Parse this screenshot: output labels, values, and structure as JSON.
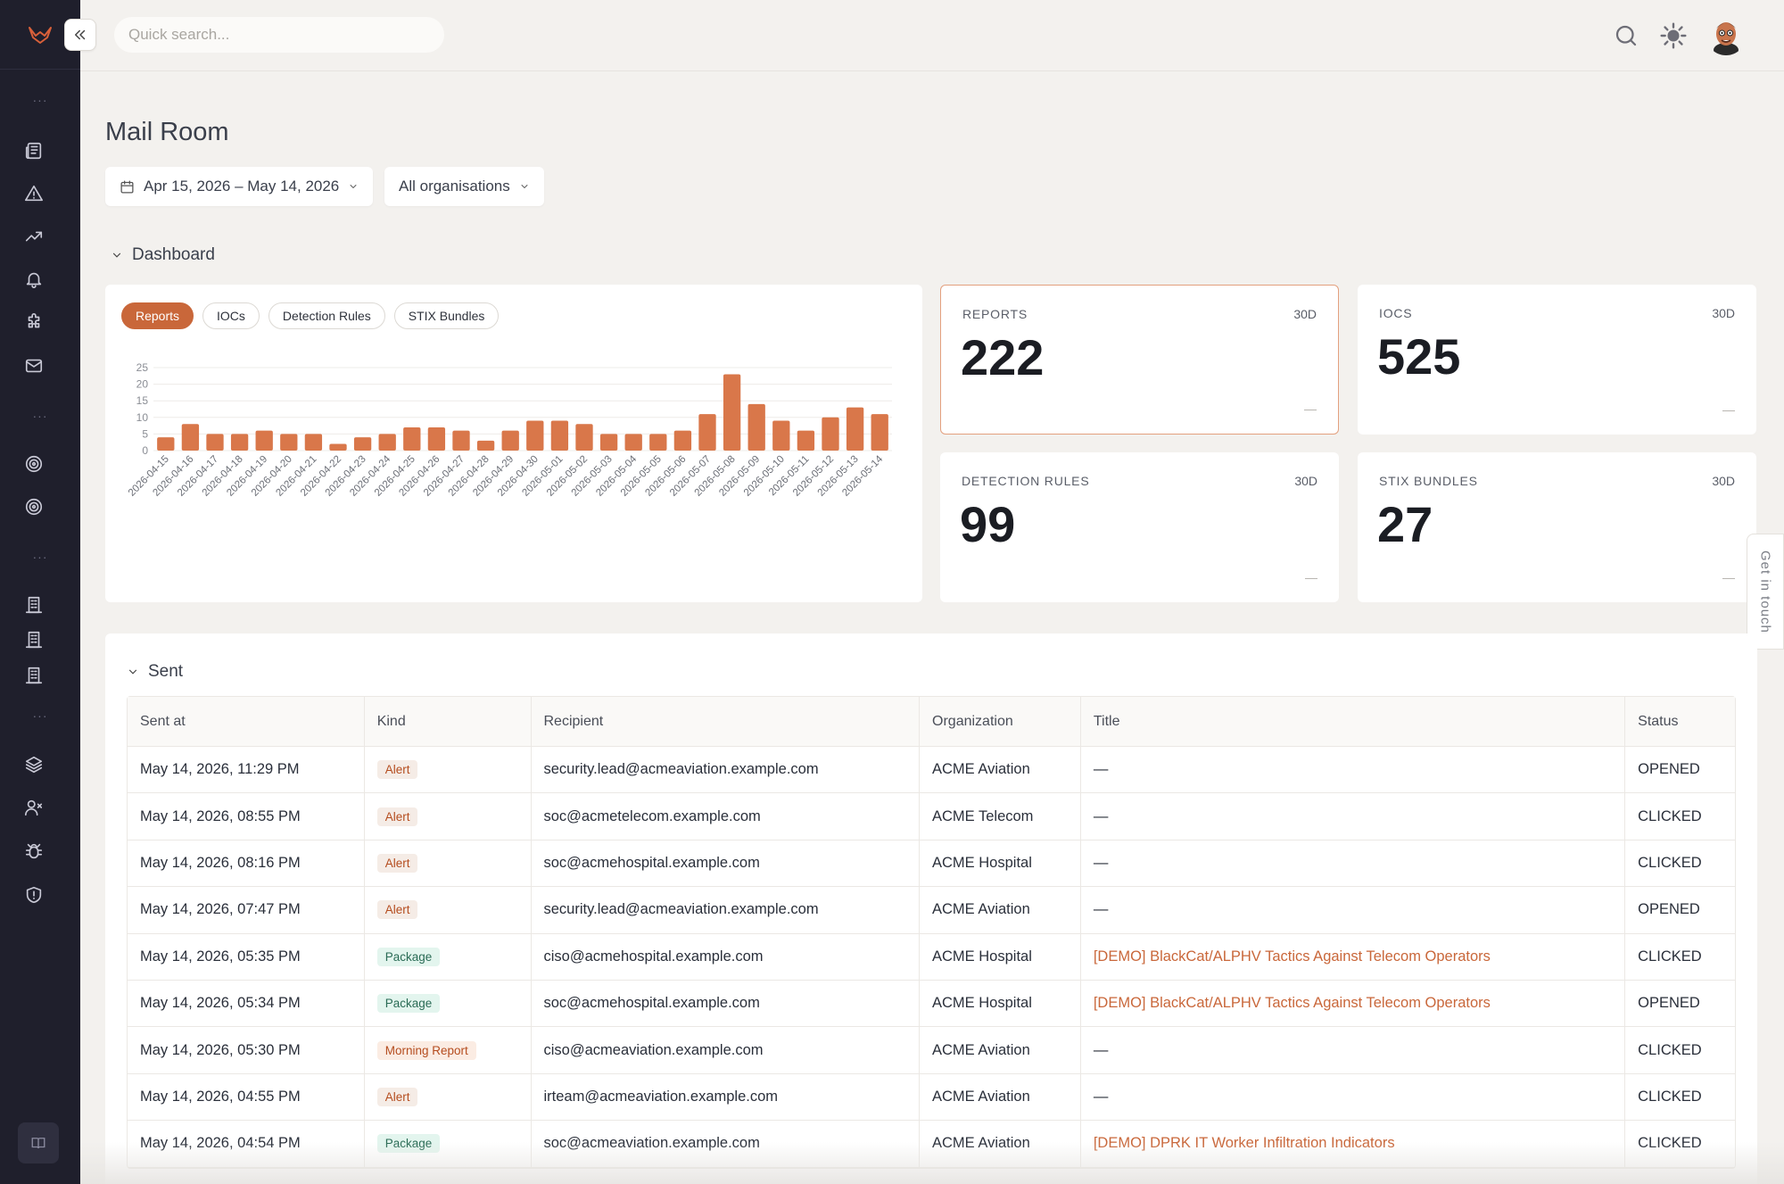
{
  "topbar": {
    "search_placeholder": "Quick search..."
  },
  "page": {
    "title": "Mail Room",
    "date_range": "Apr 15, 2026 – May 14, 2026",
    "org_filter": "All organisations"
  },
  "dashboard": {
    "section_title": "Dashboard",
    "tabs": [
      "Reports",
      "IOCs",
      "Detection Rules",
      "STIX Bundles"
    ],
    "active_tab": "Reports",
    "stats": [
      {
        "label": "REPORTS",
        "period": "30D",
        "value": "222"
      },
      {
        "label": "IOCS",
        "period": "30D",
        "value": "525"
      },
      {
        "label": "DETECTION RULES",
        "period": "30D",
        "value": "99"
      },
      {
        "label": "STIX BUNDLES",
        "period": "30D",
        "value": "27"
      }
    ]
  },
  "chart_data": {
    "type": "bar",
    "categories": [
      "2026-04-15",
      "2026-04-16",
      "2026-04-17",
      "2026-04-18",
      "2026-04-19",
      "2026-04-20",
      "2026-04-21",
      "2026-04-22",
      "2026-04-23",
      "2026-04-24",
      "2026-04-25",
      "2026-04-26",
      "2026-04-27",
      "2026-04-28",
      "2026-04-29",
      "2026-04-30",
      "2026-05-01",
      "2026-05-02",
      "2026-05-03",
      "2026-05-04",
      "2026-05-05",
      "2026-05-06",
      "2026-05-07",
      "2026-05-08",
      "2026-05-09",
      "2026-05-10",
      "2026-05-11",
      "2026-05-12",
      "2026-05-13",
      "2026-05-14"
    ],
    "values": [
      4,
      8,
      5,
      5,
      6,
      5,
      5,
      2,
      4,
      5,
      7,
      7,
      6,
      3,
      6,
      9,
      9,
      8,
      5,
      5,
      5,
      6,
      11,
      23,
      14,
      9,
      6,
      10,
      13,
      11
    ],
    "ylim": [
      0,
      25
    ],
    "yticks": [
      0,
      5,
      10,
      15,
      20,
      25
    ],
    "color": "#d9774a",
    "grid": true
  },
  "sent": {
    "section_title": "Sent",
    "columns": [
      "Sent at",
      "Kind",
      "Recipient",
      "Organization",
      "Title",
      "Status"
    ],
    "rows": [
      {
        "sent_at": "May 14, 2026, 11:29 PM",
        "kind": "Alert",
        "recipient": "security.lead@acmeaviation.example.com",
        "org": "ACME Aviation",
        "title": "—",
        "status": "OPENED"
      },
      {
        "sent_at": "May 14, 2026, 08:55 PM",
        "kind": "Alert",
        "recipient": "soc@acmetelecom.example.com",
        "org": "ACME Telecom",
        "title": "—",
        "status": "CLICKED"
      },
      {
        "sent_at": "May 14, 2026, 08:16 PM",
        "kind": "Alert",
        "recipient": "soc@acmehospital.example.com",
        "org": "ACME Hospital",
        "title": "—",
        "status": "CLICKED"
      },
      {
        "sent_at": "May 14, 2026, 07:47 PM",
        "kind": "Alert",
        "recipient": "security.lead@acmeaviation.example.com",
        "org": "ACME Aviation",
        "title": "—",
        "status": "OPENED"
      },
      {
        "sent_at": "May 14, 2026, 05:35 PM",
        "kind": "Package",
        "recipient": "ciso@acmehospital.example.com",
        "org": "ACME Hospital",
        "title": "[DEMO] BlackCat/ALPHV Tactics Against Telecom Operators",
        "status": "CLICKED"
      },
      {
        "sent_at": "May 14, 2026, 05:34 PM",
        "kind": "Package",
        "recipient": "soc@acmehospital.example.com",
        "org": "ACME Hospital",
        "title": "[DEMO] BlackCat/ALPHV Tactics Against Telecom Operators",
        "status": "OPENED"
      },
      {
        "sent_at": "May 14, 2026, 05:30 PM",
        "kind": "Morning Report",
        "recipient": "ciso@acmeaviation.example.com",
        "org": "ACME Aviation",
        "title": "—",
        "status": "CLICKED"
      },
      {
        "sent_at": "May 14, 2026, 04:55 PM",
        "kind": "Alert",
        "recipient": "irteam@acmeaviation.example.com",
        "org": "ACME Aviation",
        "title": "—",
        "status": "CLICKED"
      },
      {
        "sent_at": "May 14, 2026, 04:54 PM",
        "kind": "Package",
        "recipient": "soc@acmeaviation.example.com",
        "org": "ACME Aviation",
        "title": "[DEMO] DPRK IT Worker Infiltration Indicators",
        "status": "CLICKED"
      }
    ]
  },
  "feedback": {
    "label": "Get in touch"
  },
  "colors": {
    "accent": "#c9673a",
    "sidebar": "#1f1f2c",
    "background": "#f3f1ee"
  }
}
